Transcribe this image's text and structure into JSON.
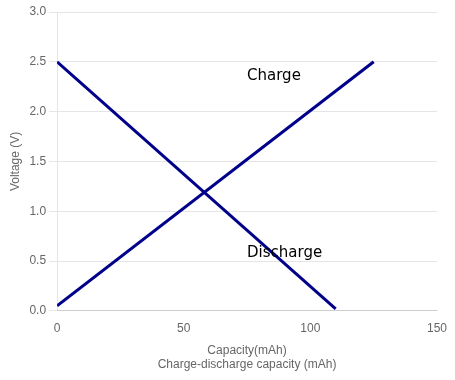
{
  "chart_data": {
    "type": "line",
    "xlabel": [
      "Capacity(mAh)",
      "Charge-discharge capacity (mAh)"
    ],
    "ylabel": "Voltage (V)",
    "series": [
      {
        "color": "#00008B",
        "x": [
          0,
          125
        ],
        "values": [
          0.05,
          2.5
        ]
      },
      {
        "color": "#00008B",
        "x": [
          0,
          110
        ],
        "values": [
          2.5,
          0.02
        ]
      }
    ],
    "xlim": [
      0,
      150
    ],
    "xticks": [
      0,
      50,
      100,
      150
    ],
    "ylim": [
      0.0,
      3.0
    ],
    "yticks": [
      {
        "value": 0.0,
        "label": "0.0"
      },
      0.5,
      {
        "value": 1.0,
        "label": "1.0"
      },
      1.5,
      {
        "value": 2.0,
        "label": "2.0"
      },
      2.5,
      {
        "value": 3.0,
        "label": "3.0"
      }
    ],
    "grid": "y",
    "annotations": [
      {
        "text": "Charge",
        "x": 75,
        "y": 2.28
      },
      {
        "text": "Discharge",
        "x": 75,
        "y": 0.65
      }
    ]
  }
}
